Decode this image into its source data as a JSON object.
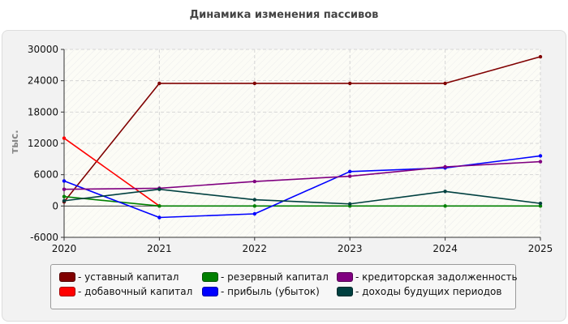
{
  "chart_data": {
    "type": "line",
    "title": "Динамика изменения пассивов",
    "ylabel": "тыс.",
    "xlabel": "",
    "x": [
      "2020",
      "2021",
      "2022",
      "2023",
      "2024",
      "2025"
    ],
    "ylim": [
      -6000,
      30000
    ],
    "yticks": [
      "30000",
      "24000",
      "18000",
      "12000",
      "6000",
      "0",
      "-6000"
    ],
    "grid": true,
    "legend_position": "bottom",
    "series": [
      {
        "name": "уставный капитал",
        "color": "#800000",
        "values": [
          800,
          23500,
          23500,
          23500,
          23500,
          28600
        ]
      },
      {
        "name": "добавочный капитал",
        "color": "#ff0000",
        "values": [
          13000,
          0,
          null,
          null,
          null,
          null
        ]
      },
      {
        "name": "резервный капитал",
        "color": "#008000",
        "values": [
          1800,
          0,
          0,
          0,
          0,
          0
        ]
      },
      {
        "name": "прибыль (убыток)",
        "color": "#0000ff",
        "values": [
          4800,
          -2200,
          -1500,
          6600,
          7300,
          9600
        ]
      },
      {
        "name": "кредиторская задолженность",
        "color": "#800080",
        "values": [
          3200,
          3400,
          4700,
          5700,
          7500,
          8500
        ]
      },
      {
        "name": "доходы будущих периодов",
        "color": "#004040",
        "values": [
          1000,
          3200,
          1200,
          400,
          2800,
          500
        ]
      }
    ]
  }
}
